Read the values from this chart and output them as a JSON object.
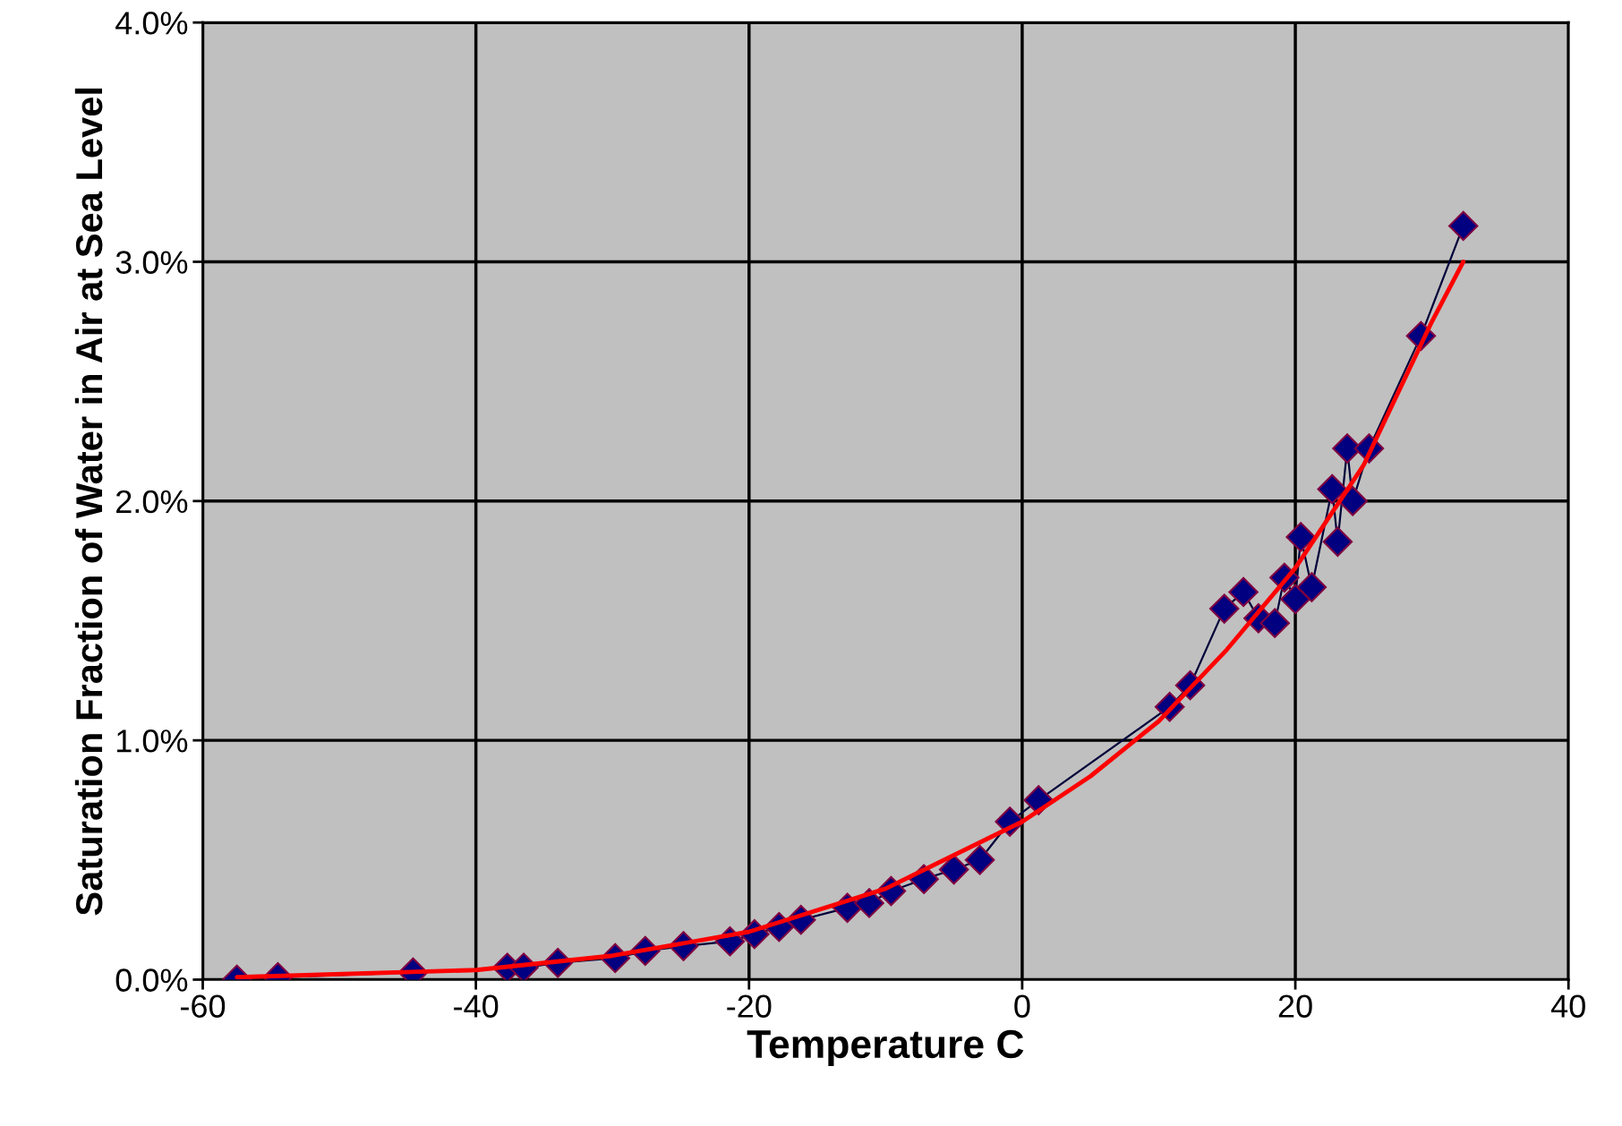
{
  "chart_data": {
    "type": "line",
    "xlabel": "Temperature C",
    "ylabel": "Saturation Fraction of Water in Air at Sea Level",
    "xlim": [
      -60,
      40
    ],
    "xticks": [
      -60,
      -40,
      -20,
      0,
      20,
      40
    ],
    "ylim": [
      0,
      4
    ],
    "yticks": [
      {
        "value": 0,
        "label": "0.0%"
      },
      {
        "value": 1,
        "label": "1.0%"
      },
      {
        "value": 2,
        "label": "2.0%"
      },
      {
        "value": 3,
        "label": "3.0%"
      },
      {
        "value": 4,
        "label": "4.0%"
      }
    ],
    "grid": true,
    "line_style": "solid",
    "series": [
      {
        "type": "line",
        "marker": "diamond",
        "color": "#000080",
        "x": [
          -57.5,
          -54.5,
          -44.6,
          -37.7,
          -36.5,
          -34,
          -29.8,
          -27.6,
          -24.8,
          -21.4,
          -19.6,
          -17.8,
          -16.2,
          -12.8,
          -11.2,
          -9.6,
          -7.2,
          -5,
          -3.1,
          -0.9,
          1.2,
          10.8,
          12.3,
          14.8,
          16.2,
          17.3,
          18.5,
          19.2,
          20,
          20.4,
          21.2,
          22.7,
          23.1,
          23.8,
          24.2,
          25.4,
          29.2,
          32.3
        ],
        "values": [
          0.0,
          0.01,
          0.03,
          0.05,
          0.05,
          0.07,
          0.09,
          0.12,
          0.14,
          0.16,
          0.19,
          0.22,
          0.25,
          0.3,
          0.32,
          0.37,
          0.42,
          0.46,
          0.5,
          0.66,
          0.75,
          1.14,
          1.23,
          1.55,
          1.62,
          1.51,
          1.49,
          1.68,
          1.59,
          1.85,
          1.64,
          2.05,
          1.83,
          2.22,
          2.0,
          2.22,
          2.69,
          3.15
        ]
      },
      {
        "marker": "none",
        "color": "#ff0000",
        "x": [
          -57.5,
          -40,
          -30,
          -20,
          -10,
          0,
          5,
          10,
          15,
          20,
          25,
          30,
          32.3
        ],
        "values": [
          0.01,
          0.04,
          0.1,
          0.2,
          0.38,
          0.66,
          0.85,
          1.08,
          1.38,
          1.72,
          2.15,
          2.75,
          3.0
        ]
      }
    ]
  }
}
